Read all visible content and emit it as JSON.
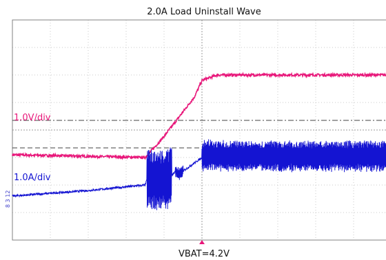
{
  "chart_data": {
    "type": "line",
    "title": "2.0A Load  Uninstall Wave",
    "footer": "VBAT=4.2V",
    "grid": true,
    "x_divisions": 10,
    "y_divisions": 8,
    "colors": {
      "voltage": "#e8177a",
      "current": "#1414d2",
      "grid": "#c8c8c8",
      "frame": "#808080",
      "ref": "#404040"
    },
    "series": [
      {
        "scale": "1.0V/div",
        "x": [
          0.0,
          3.5,
          3.9,
          4.3,
          4.8,
          5.0,
          5.4,
          10.0
        ],
        "y": [
          3.1,
          3.0,
          3.6,
          4.3,
          5.2,
          5.8,
          6.0,
          6.0
        ]
      },
      {
        "scale": "1.0A/div",
        "x": [
          0.0,
          2.0,
          3.5,
          3.55,
          4.1,
          4.3,
          4.4,
          5.1,
          5.6,
          10.0
        ],
        "y": [
          1.6,
          1.8,
          2.0,
          2.2,
          2.2,
          2.5,
          2.4,
          3.1,
          3.05,
          3.05
        ],
        "ringing": [
          {
            "x0": 3.55,
            "x1": 4.2,
            "amp": 1.1
          },
          {
            "x0": 4.3,
            "x1": 4.5,
            "amp": 0.2
          },
          {
            "x0": 5.0,
            "x1": 10.0,
            "amp": 0.55
          }
        ]
      }
    ],
    "reference_lines": [
      {
        "style": "dashdot",
        "y": 4.35
      },
      {
        "style": "dashed",
        "y": 3.35
      }
    ],
    "trigger_x": 5.0,
    "channel_marks": "8 3 12"
  }
}
